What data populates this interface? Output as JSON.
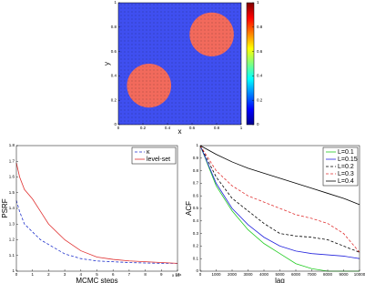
{
  "chart_data": [
    {
      "type": "image",
      "xlabel": "x",
      "ylabel": "y",
      "xlim": [
        0,
        1
      ],
      "ylim": [
        0,
        1
      ],
      "xticks": [
        0,
        0.2,
        0.4,
        0.6,
        0.8,
        1
      ],
      "yticks": [
        0,
        0.2,
        0.4,
        0.6,
        0.8,
        1
      ],
      "background_color": "#3f4ff0",
      "circle_color": "#f26a5c",
      "circles": [
        {
          "x": 0.76,
          "y": 0.74,
          "r": 0.18
        },
        {
          "x": 0.25,
          "y": 0.32,
          "r": 0.18
        }
      ],
      "colorbar": {
        "lim": [
          0,
          1
        ],
        "ticks": [
          0,
          0.2,
          0.4,
          0.6,
          0.8,
          1
        ]
      }
    },
    {
      "type": "line",
      "xlabel": "MCMC steps",
      "ylabel": "PSRF",
      "x_multiplier_label": "x 10⁴",
      "x": [
        0,
        0.2,
        0.5,
        1,
        1.5,
        2,
        3,
        4,
        5,
        6,
        7,
        8,
        9,
        10
      ],
      "xlim": [
        0,
        10
      ],
      "ylim": [
        1,
        1.8
      ],
      "xticks": [
        0,
        1,
        2,
        3,
        4,
        5,
        6,
        7,
        8,
        9,
        10
      ],
      "yticks": [
        1,
        1.1,
        1.2,
        1.3,
        1.4,
        1.5,
        1.6,
        1.7,
        1.8
      ],
      "legend": "upper right",
      "series": [
        {
          "name": "κ",
          "color": "#2233cc",
          "dash": true,
          "values": [
            1.45,
            1.38,
            1.3,
            1.25,
            1.2,
            1.17,
            1.11,
            1.08,
            1.065,
            1.06,
            1.055,
            1.052,
            1.05,
            1.05
          ]
        },
        {
          "name": "level-set",
          "color": "#e03030",
          "dash": false,
          "values": [
            1.69,
            1.6,
            1.52,
            1.46,
            1.38,
            1.3,
            1.2,
            1.13,
            1.09,
            1.075,
            1.065,
            1.06,
            1.055,
            1.05
          ]
        }
      ]
    },
    {
      "type": "line",
      "xlabel": "lag",
      "ylabel": "ACF",
      "x": [
        0,
        1000,
        2000,
        3000,
        4000,
        5000,
        6000,
        7000,
        8000,
        9000,
        10000
      ],
      "xlim": [
        0,
        10000
      ],
      "ylim": [
        0,
        1
      ],
      "xticks": [
        0,
        1000,
        2000,
        3000,
        4000,
        5000,
        6000,
        7000,
        8000,
        9000,
        10000
      ],
      "yticks": [
        0,
        0.1,
        0.2,
        0.3,
        0.4,
        0.5,
        0.6,
        0.7,
        0.8,
        0.9,
        1
      ],
      "legend": "upper right",
      "series": [
        {
          "name": "L=0.1",
          "color": "#22cc22",
          "dash": false,
          "values": [
            1,
            0.68,
            0.48,
            0.33,
            0.22,
            0.14,
            0.06,
            0.02,
            0,
            0,
            0
          ]
        },
        {
          "name": "L=0.15",
          "color": "#2222dd",
          "dash": false,
          "values": [
            1,
            0.7,
            0.5,
            0.37,
            0.27,
            0.2,
            0.16,
            0.14,
            0.13,
            0.12,
            0.1
          ]
        },
        {
          "name": "L=0.2",
          "color": "#000000",
          "dash": true,
          "values": [
            1,
            0.75,
            0.58,
            0.48,
            0.38,
            0.3,
            0.28,
            0.27,
            0.25,
            0.2,
            0.15
          ]
        },
        {
          "name": "L=0.3",
          "color": "#e03030",
          "dash": true,
          "values": [
            1,
            0.8,
            0.68,
            0.6,
            0.55,
            0.5,
            0.45,
            0.42,
            0.38,
            0.3,
            0.15
          ]
        },
        {
          "name": "L=0.4",
          "color": "#000000",
          "dash": false,
          "values": [
            1,
            0.93,
            0.87,
            0.82,
            0.78,
            0.74,
            0.7,
            0.66,
            0.62,
            0.58,
            0.53
          ]
        }
      ]
    }
  ]
}
